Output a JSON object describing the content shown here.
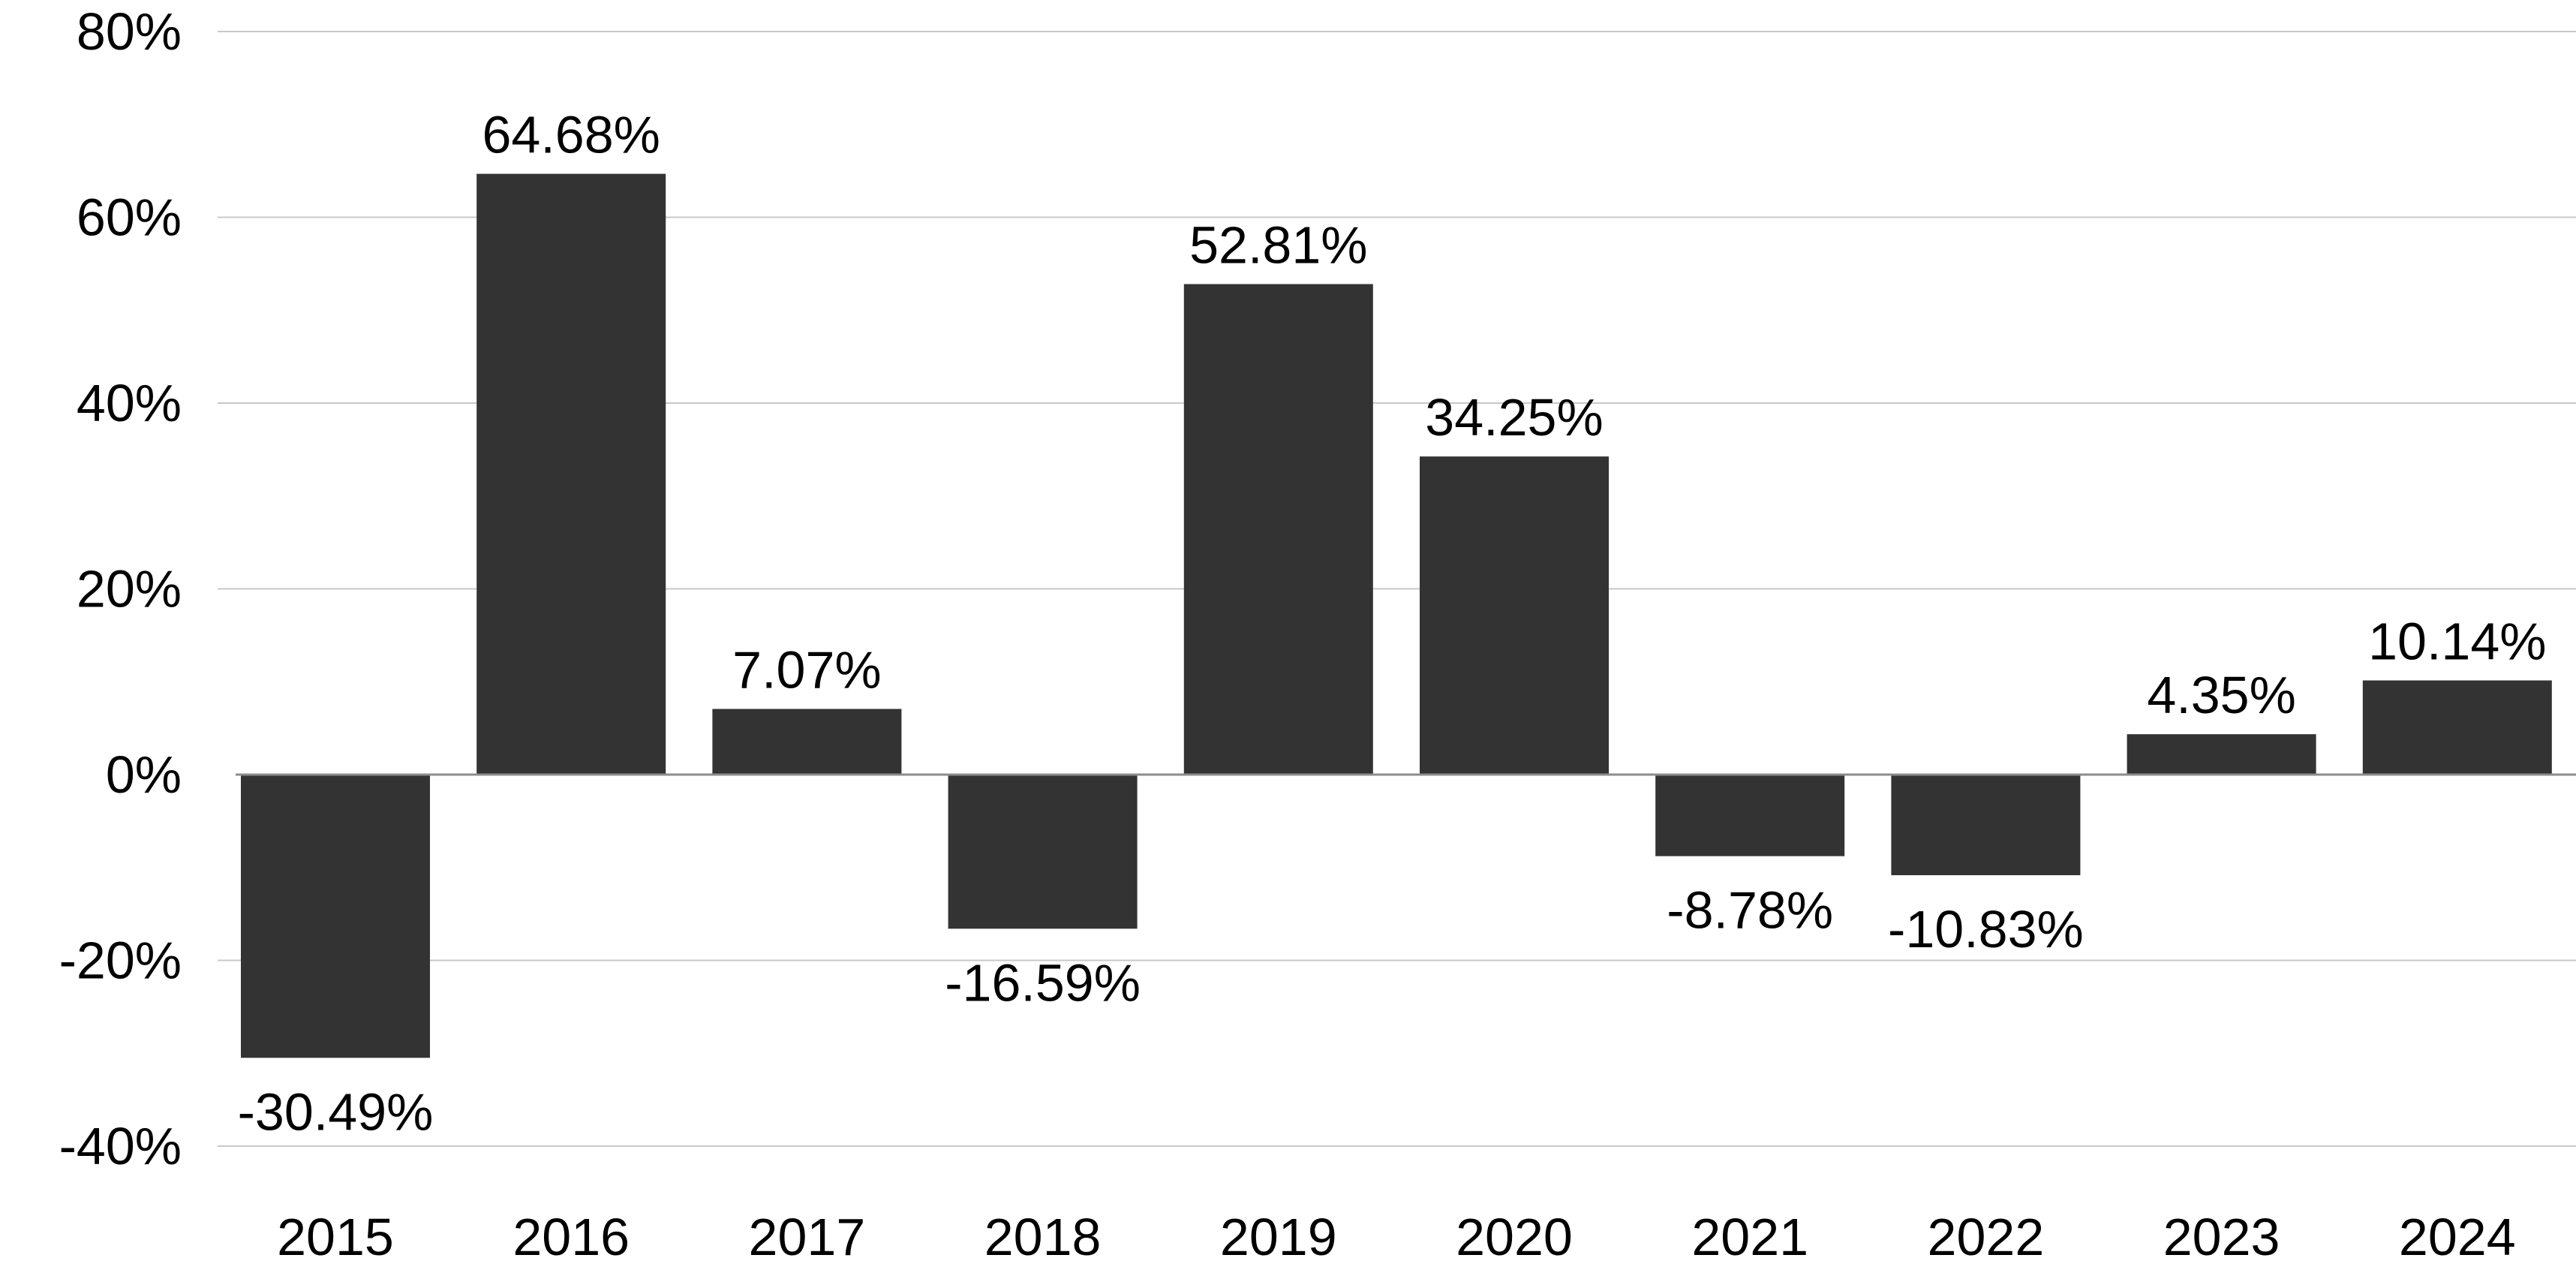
{
  "chart_data": {
    "type": "bar",
    "title": "",
    "xlabel": "",
    "ylabel": "",
    "categories": [
      "2015",
      "2016",
      "2017",
      "2018",
      "2019",
      "2020",
      "2021",
      "2022",
      "2023",
      "2024"
    ],
    "values": [
      -30.49,
      64.68,
      7.07,
      -16.59,
      52.81,
      34.25,
      -8.78,
      -10.83,
      4.35,
      10.14
    ],
    "data_labels": [
      "-30.49%",
      "64.68%",
      "7.07%",
      "-16.59%",
      "52.81%",
      "34.25%",
      "-8.78%",
      "-10.83%",
      "4.35%",
      "10.14%"
    ],
    "ylim": [
      -40,
      80
    ],
    "y_ticks": [
      80,
      60,
      40,
      20,
      0,
      -20,
      -40
    ],
    "y_tick_labels": [
      "80%",
      "60%",
      "40%",
      "20%",
      "0%",
      "-20%",
      "-40%"
    ],
    "grid": true,
    "legend": "none",
    "bar_color": "#333333",
    "grid_color": "#c8c8c8",
    "zero_line_color": "#8c8c8c"
  }
}
